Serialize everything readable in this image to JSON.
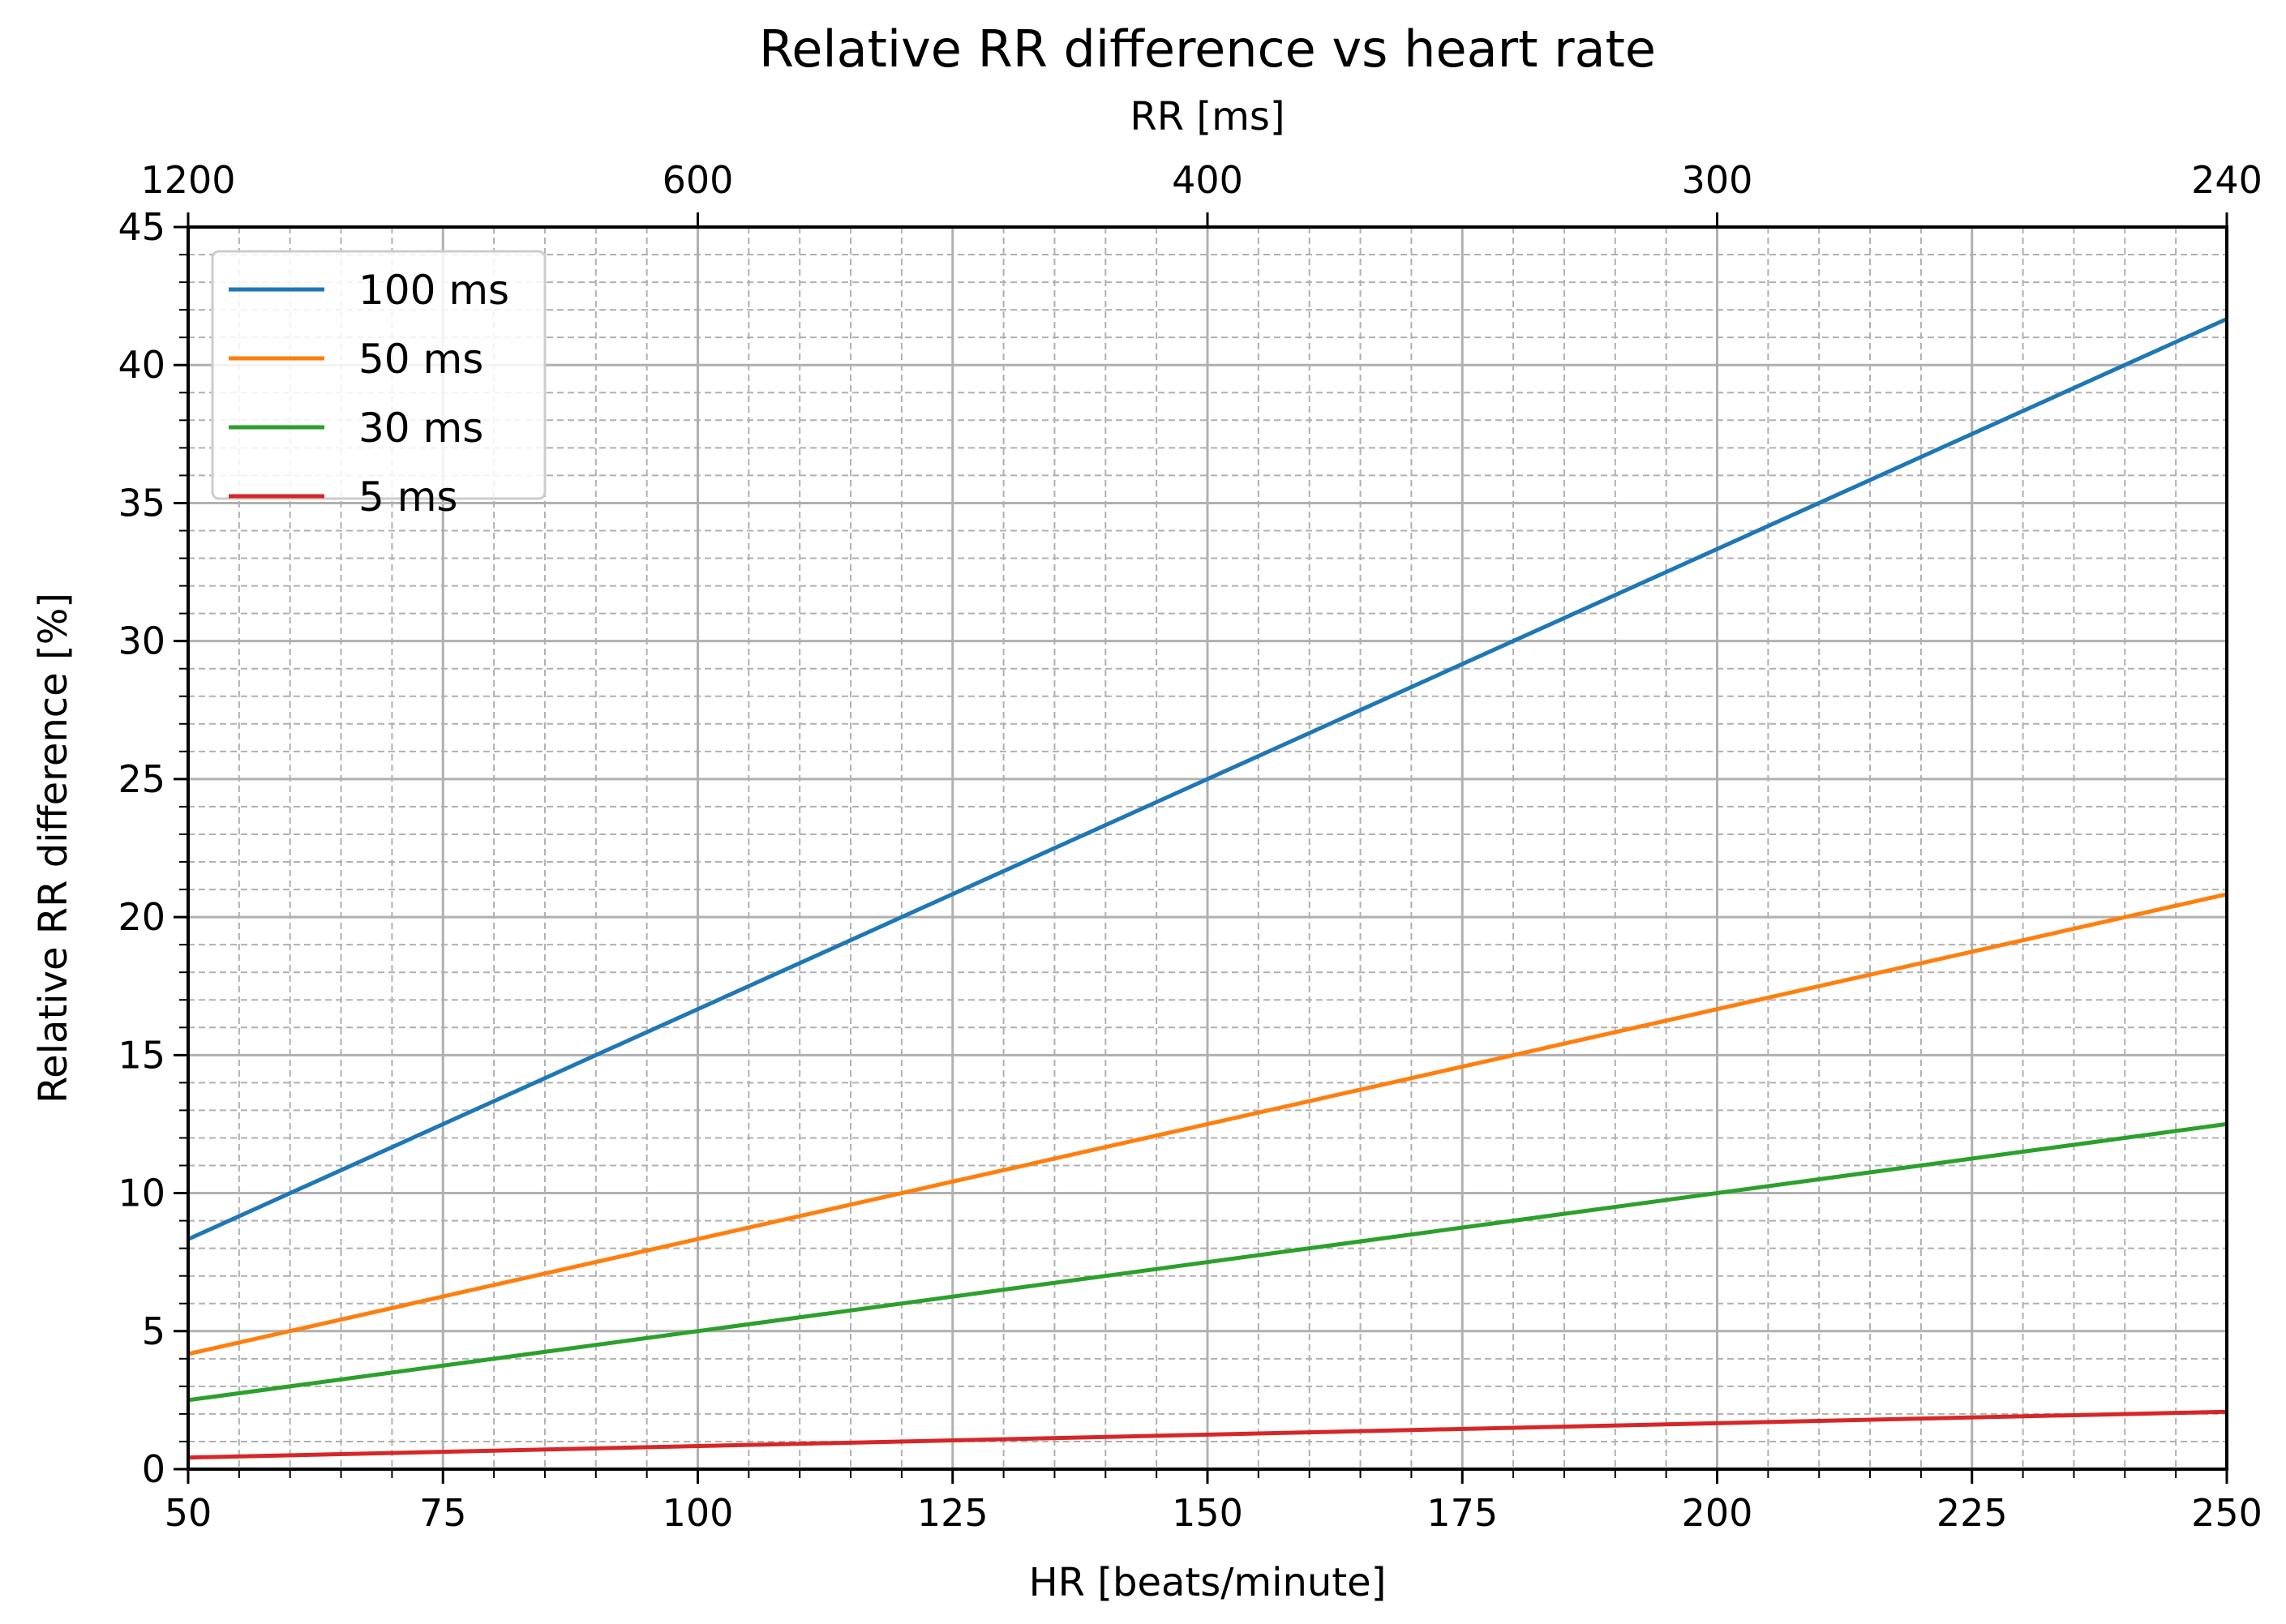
{
  "chart_data": {
    "type": "line",
    "title": "Relative RR difference vs heart rate",
    "xlabel": "HR [beats/minute]",
    "ylabel": "Relative RR difference [%]",
    "secondary_xlabel": "RR [ms]",
    "xlim": [
      50,
      250
    ],
    "ylim": [
      0,
      45
    ],
    "x_ticks": [
      50,
      75,
      100,
      125,
      150,
      175,
      200,
      225,
      250
    ],
    "y_ticks": [
      0,
      5,
      10,
      15,
      20,
      25,
      30,
      35,
      40,
      45
    ],
    "x_minor_step": 5,
    "y_minor_step": 1,
    "top_ticks": [
      {
        "hr": 50,
        "label": "1200"
      },
      {
        "hr": 100,
        "label": "600"
      },
      {
        "hr": 150,
        "label": "400"
      },
      {
        "hr": 200,
        "label": "300"
      },
      {
        "hr": 250,
        "label": "240"
      }
    ],
    "grid": true,
    "legend_position": "upper-left",
    "x": [
      50,
      250
    ],
    "series": [
      {
        "name": "100 ms",
        "color": "#1f77b4",
        "values": [
          8.33,
          41.67
        ]
      },
      {
        "name": "50 ms",
        "color": "#ff7f0e",
        "values": [
          4.17,
          20.83
        ]
      },
      {
        "name": "30 ms",
        "color": "#2ca02c",
        "values": [
          2.5,
          12.5
        ]
      },
      {
        "name": "5 ms",
        "color": "#d62728",
        "values": [
          0.42,
          2.08
        ]
      }
    ]
  }
}
